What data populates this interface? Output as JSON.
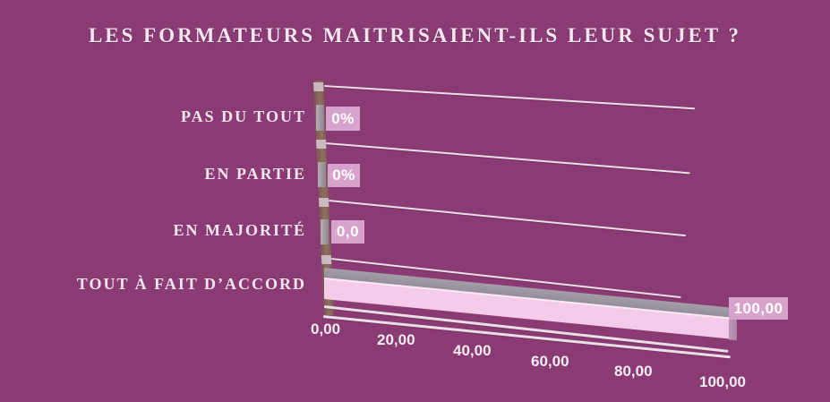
{
  "chart_data": {
    "type": "bar",
    "orientation": "horizontal",
    "projection": "3d",
    "title": "LES FORMATEURS MAITRISAIENT-ILS LEUR SUJET ?",
    "categories": [
      "PAS DU TOUT",
      "EN PARTIE",
      "EN MAJORITÉ",
      "TOUT À FAIT D’ACCORD"
    ],
    "values": [
      0,
      0,
      0,
      100
    ],
    "value_labels": [
      "0%",
      "0%",
      "0,0",
      "100,00"
    ],
    "x_ticks": [
      "0,00",
      "20,00",
      "40,00",
      "60,00",
      "80,00",
      "100,00"
    ],
    "xlim": [
      0,
      100
    ],
    "grid": true,
    "legend": "none",
    "colors": {
      "background": "#8B3B74",
      "bar_front": "#F5CBEA",
      "bar_top": "#9D97A2",
      "value_label_bg": "#D7A3CC",
      "gridline": "#E9DFE7",
      "axis_wall": "#86655A",
      "text": "#FFFFFF"
    }
  }
}
